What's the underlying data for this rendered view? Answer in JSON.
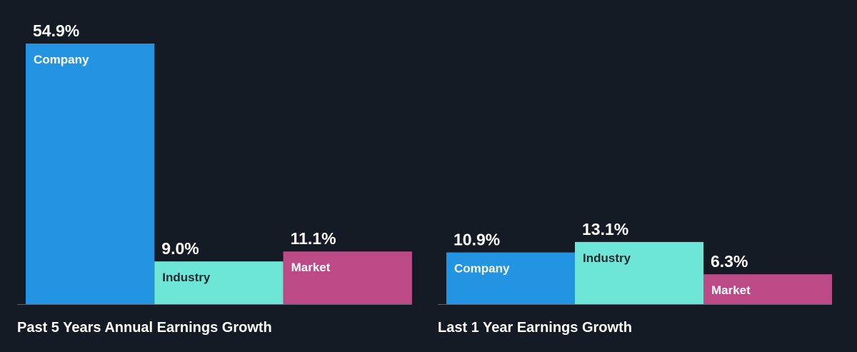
{
  "chart_data": [
    {
      "type": "bar",
      "title": "Past 5 Years Annual Earnings Growth",
      "categories": [
        "Company",
        "Industry",
        "Market"
      ],
      "values": [
        54.9,
        9.0,
        11.1
      ],
      "value_labels": [
        "54.9%",
        "9.0%",
        "11.1%"
      ],
      "unit": "%",
      "ylim": [
        0,
        60
      ],
      "colors": [
        "#2394e1",
        "#6ee6d6",
        "#bb4a87"
      ],
      "grid": false,
      "legend": "none"
    },
    {
      "type": "bar",
      "title": "Last 1 Year Earnings Growth",
      "categories": [
        "Company",
        "Industry",
        "Market"
      ],
      "values": [
        10.9,
        13.1,
        6.3
      ],
      "value_labels": [
        "10.9%",
        "13.1%",
        "6.3%"
      ],
      "unit": "%",
      "ylim": [
        0,
        60
      ],
      "colors": [
        "#2394e1",
        "#6ee6d6",
        "#bb4a87"
      ],
      "grid": false,
      "legend": "none"
    }
  ],
  "colors": {
    "background": "#151b24",
    "text": "#ffffff",
    "baseline": "#5a616b",
    "label_on_light": "#1e2a33"
  }
}
